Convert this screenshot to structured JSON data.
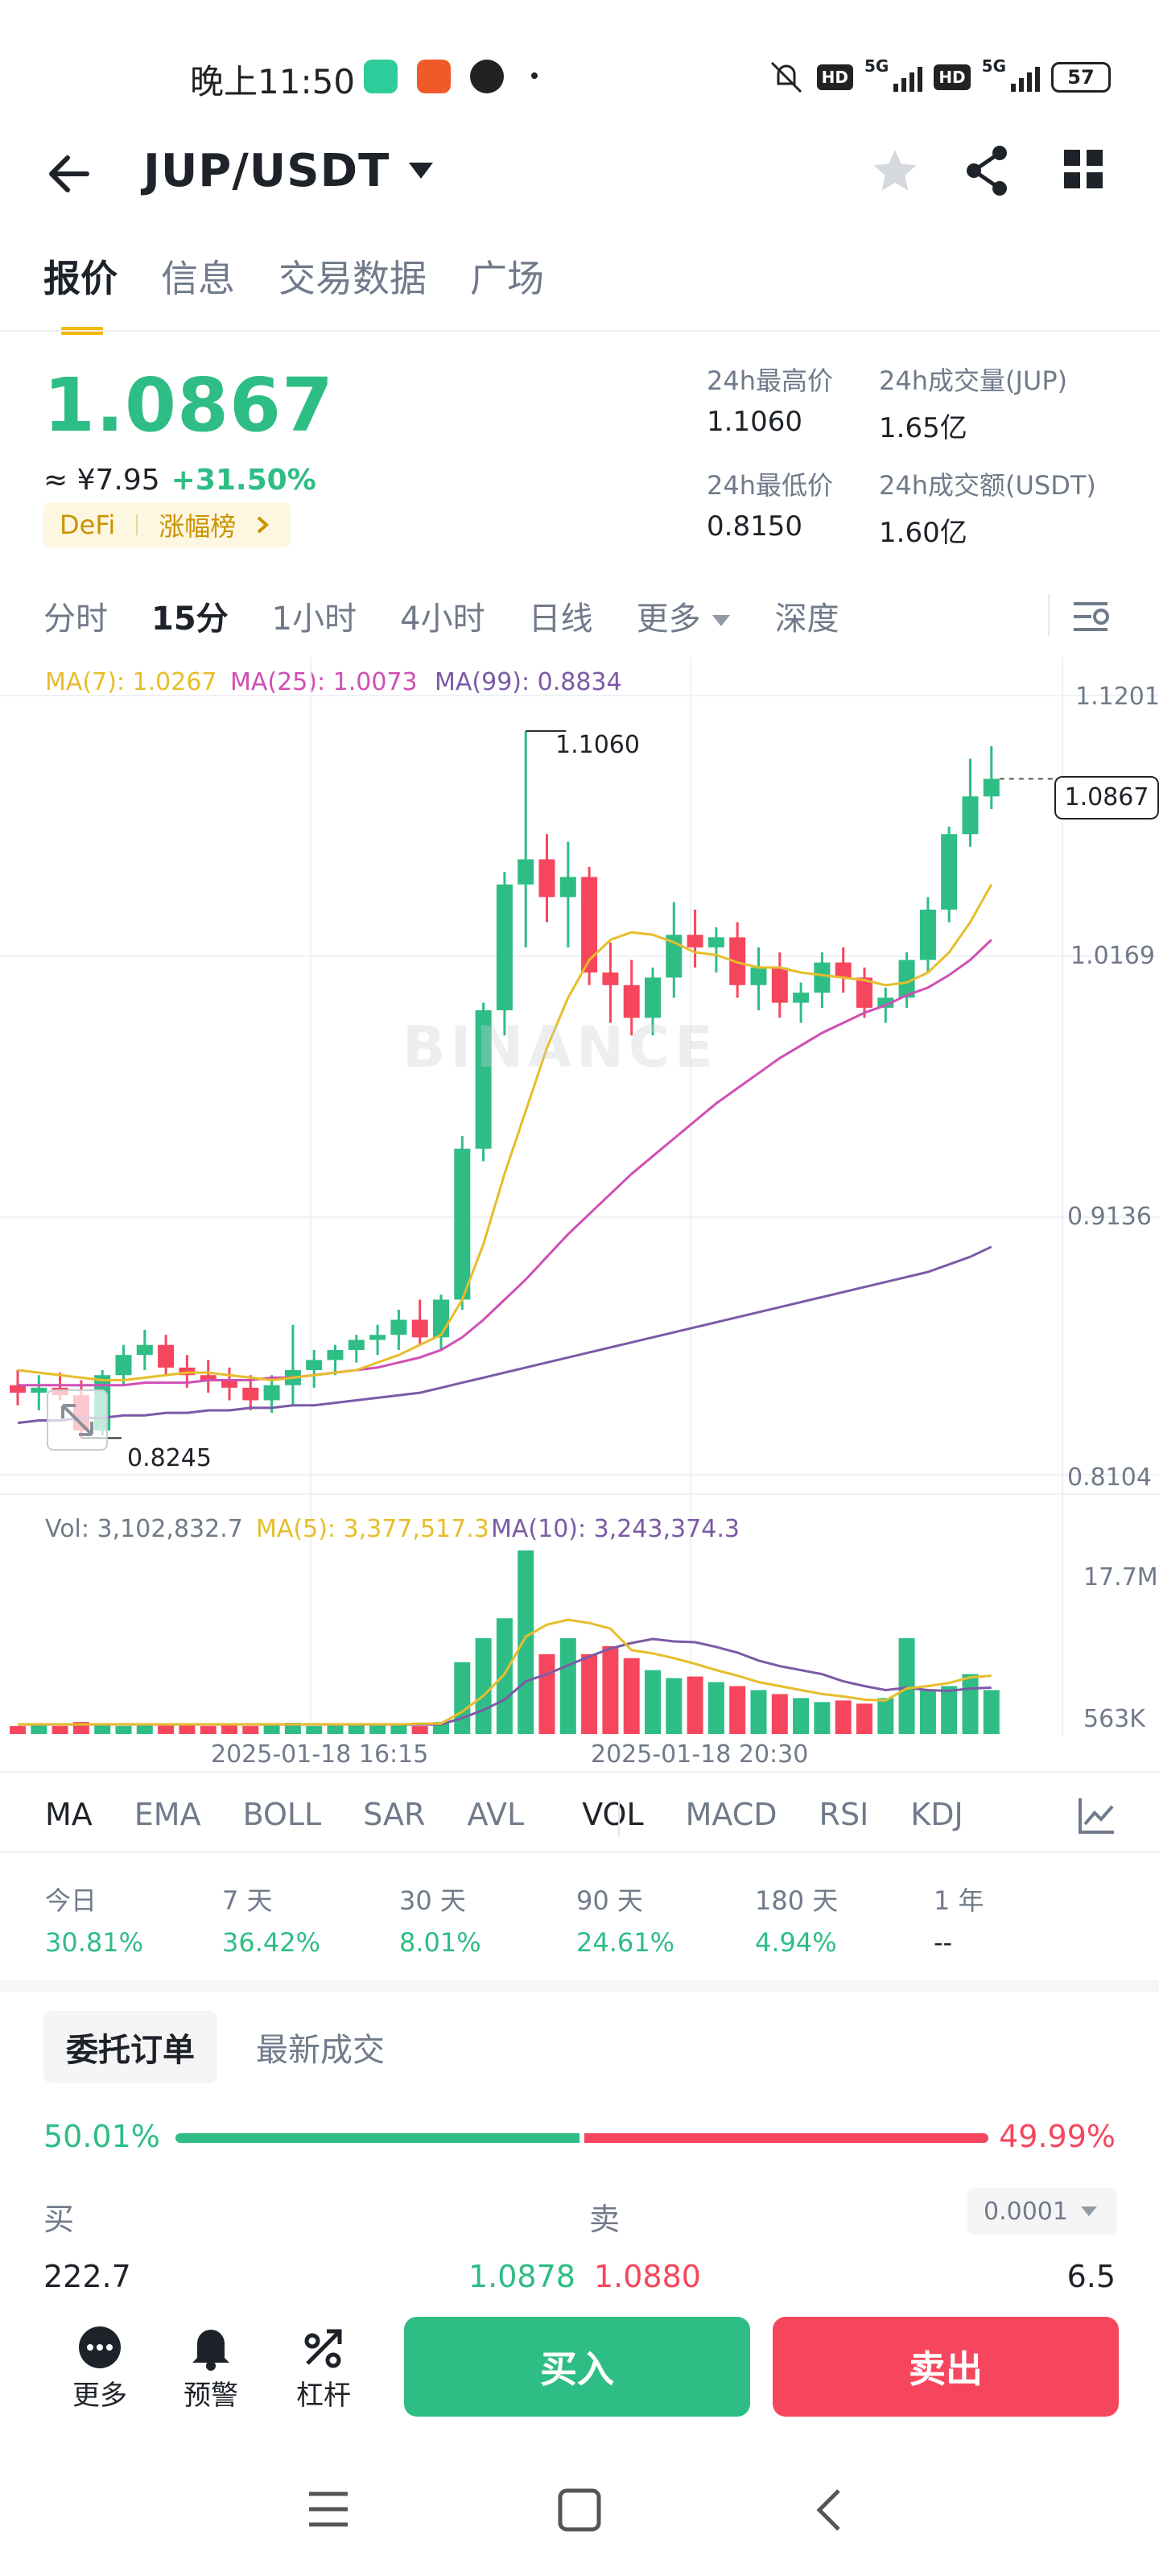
{
  "status_bar": {
    "time": "晚上11:50",
    "network": "5G",
    "hd": "HD",
    "battery": "57"
  },
  "header": {
    "pair": "JUP/USDT"
  },
  "tabs": [
    "报价",
    "信息",
    "交易数据",
    "广场"
  ],
  "price": {
    "last": "1.0867",
    "cny": "≈ ¥7.95",
    "change": "+31.50%",
    "tag_sector": "DeFi",
    "tag_rank": "涨幅榜",
    "high_label": "24h最高价",
    "high": "1.1060",
    "low_label": "24h最低价",
    "low": "0.8150",
    "vol_label": "24h成交量(JUP)",
    "vol": "1.65亿",
    "turnover_label": "24h成交额(USDT)",
    "turnover": "1.60亿"
  },
  "intervals": [
    "分时",
    "15分",
    "1小时",
    "4小时",
    "日线",
    "更多",
    "深度"
  ],
  "chart": {
    "ma7": "MA(7): 1.0267",
    "ma25": "MA(25): 1.0073",
    "ma99": "MA(99): 0.8834",
    "y_ticks": [
      "1.1201",
      "1.0169",
      "0.9136",
      "0.8104"
    ],
    "current_price": "1.0867",
    "high_mark": "1.1060",
    "low_mark": "0.8245",
    "vol_legend": "Vol: 3,102,832.7",
    "vol_ma5": "MA(5): 3,377,517.3",
    "vol_ma10": "MA(10): 3,243,374.3",
    "vol_ticks": [
      "17.7M",
      "563K"
    ],
    "x_ticks": [
      "2025-01-18 16:15",
      "2025-01-18 20:30"
    ],
    "watermark": "BINANCE",
    "colors": {
      "up": "#2ebd85",
      "down": "#f6465d",
      "ma7": "#e7bd2a",
      "ma25": "#d04fb4",
      "ma99": "#7b5aa6"
    }
  },
  "chart_data": {
    "type": "candlestick",
    "title": "JUP/USDT 15分",
    "ylim": [
      0.8104,
      1.1201
    ],
    "candles": [
      {
        "o": 0.846,
        "h": 0.852,
        "l": 0.838,
        "c": 0.843
      },
      {
        "o": 0.843,
        "h": 0.85,
        "l": 0.836,
        "c": 0.845
      },
      {
        "o": 0.845,
        "h": 0.851,
        "l": 0.84,
        "c": 0.842
      },
      {
        "o": 0.842,
        "h": 0.848,
        "l": 0.825,
        "c": 0.828
      },
      {
        "o": 0.828,
        "h": 0.852,
        "l": 0.826,
        "c": 0.85
      },
      {
        "o": 0.85,
        "h": 0.862,
        "l": 0.846,
        "c": 0.858
      },
      {
        "o": 0.858,
        "h": 0.868,
        "l": 0.852,
        "c": 0.862
      },
      {
        "o": 0.862,
        "h": 0.866,
        "l": 0.85,
        "c": 0.853
      },
      {
        "o": 0.853,
        "h": 0.858,
        "l": 0.845,
        "c": 0.85
      },
      {
        "o": 0.85,
        "h": 0.856,
        "l": 0.843,
        "c": 0.848
      },
      {
        "o": 0.848,
        "h": 0.853,
        "l": 0.84,
        "c": 0.845
      },
      {
        "o": 0.845,
        "h": 0.85,
        "l": 0.836,
        "c": 0.84
      },
      {
        "o": 0.84,
        "h": 0.85,
        "l": 0.835,
        "c": 0.846
      },
      {
        "o": 0.846,
        "h": 0.87,
        "l": 0.838,
        "c": 0.852
      },
      {
        "o": 0.852,
        "h": 0.86,
        "l": 0.845,
        "c": 0.856
      },
      {
        "o": 0.856,
        "h": 0.862,
        "l": 0.85,
        "c": 0.86
      },
      {
        "o": 0.86,
        "h": 0.866,
        "l": 0.855,
        "c": 0.864
      },
      {
        "o": 0.864,
        "h": 0.87,
        "l": 0.858,
        "c": 0.866
      },
      {
        "o": 0.866,
        "h": 0.876,
        "l": 0.86,
        "c": 0.872
      },
      {
        "o": 0.872,
        "h": 0.88,
        "l": 0.862,
        "c": 0.865
      },
      {
        "o": 0.865,
        "h": 0.882,
        "l": 0.86,
        "c": 0.88
      },
      {
        "o": 0.88,
        "h": 0.945,
        "l": 0.876,
        "c": 0.94
      },
      {
        "o": 0.94,
        "h": 0.998,
        "l": 0.935,
        "c": 0.995
      },
      {
        "o": 0.995,
        "h": 1.05,
        "l": 0.985,
        "c": 1.045
      },
      {
        "o": 1.045,
        "h": 1.106,
        "l": 1.02,
        "c": 1.055
      },
      {
        "o": 1.055,
        "h": 1.065,
        "l": 1.03,
        "c": 1.04
      },
      {
        "o": 1.04,
        "h": 1.062,
        "l": 1.02,
        "c": 1.048
      },
      {
        "o": 1.048,
        "h": 1.052,
        "l": 1.005,
        "c": 1.01
      },
      {
        "o": 1.01,
        "h": 1.022,
        "l": 0.99,
        "c": 1.005
      },
      {
        "o": 1.005,
        "h": 1.015,
        "l": 0.985,
        "c": 0.992
      },
      {
        "o": 0.992,
        "h": 1.012,
        "l": 0.985,
        "c": 1.008
      },
      {
        "o": 1.008,
        "h": 1.038,
        "l": 1.0,
        "c": 1.025
      },
      {
        "o": 1.025,
        "h": 1.035,
        "l": 1.012,
        "c": 1.02
      },
      {
        "o": 1.02,
        "h": 1.028,
        "l": 1.01,
        "c": 1.024
      },
      {
        "o": 1.024,
        "h": 1.03,
        "l": 1.0,
        "c": 1.005
      },
      {
        "o": 1.005,
        "h": 1.02,
        "l": 0.995,
        "c": 1.012
      },
      {
        "o": 1.012,
        "h": 1.018,
        "l": 0.992,
        "c": 0.998
      },
      {
        "o": 0.998,
        "h": 1.006,
        "l": 0.99,
        "c": 1.002
      },
      {
        "o": 1.002,
        "h": 1.018,
        "l": 0.996,
        "c": 1.014
      },
      {
        "o": 1.014,
        "h": 1.02,
        "l": 1.002,
        "c": 1.008
      },
      {
        "o": 1.008,
        "h": 1.012,
        "l": 0.992,
        "c": 0.996
      },
      {
        "o": 0.996,
        "h": 1.004,
        "l": 0.99,
        "c": 1.0
      },
      {
        "o": 1.0,
        "h": 1.018,
        "l": 0.996,
        "c": 1.015
      },
      {
        "o": 1.015,
        "h": 1.04,
        "l": 1.01,
        "c": 1.035
      },
      {
        "o": 1.035,
        "h": 1.068,
        "l": 1.03,
        "c": 1.065
      },
      {
        "o": 1.065,
        "h": 1.095,
        "l": 1.06,
        "c": 1.08
      },
      {
        "o": 1.08,
        "h": 1.1,
        "l": 1.075,
        "c": 1.087
      }
    ],
    "ma7": [
      0.852,
      0.851,
      0.85,
      0.849,
      0.848,
      0.848,
      0.849,
      0.85,
      0.851,
      0.851,
      0.85,
      0.849,
      0.848,
      0.849,
      0.85,
      0.851,
      0.852,
      0.855,
      0.858,
      0.862,
      0.866,
      0.88,
      0.902,
      0.93,
      0.955,
      0.98,
      1.0,
      1.015,
      1.023,
      1.026,
      1.025,
      1.022,
      1.018,
      1.017,
      1.014,
      1.012,
      1.012,
      1.01,
      1.009,
      1.008,
      1.007,
      1.005,
      1.006,
      1.01,
      1.018,
      1.03,
      1.045
    ],
    "ma25": [
      0.846,
      0.846,
      0.846,
      0.846,
      0.846,
      0.846,
      0.847,
      0.847,
      0.847,
      0.848,
      0.848,
      0.848,
      0.849,
      0.849,
      0.85,
      0.851,
      0.852,
      0.853,
      0.855,
      0.857,
      0.86,
      0.865,
      0.872,
      0.88,
      0.888,
      0.897,
      0.906,
      0.914,
      0.922,
      0.93,
      0.937,
      0.944,
      0.951,
      0.958,
      0.964,
      0.97,
      0.976,
      0.981,
      0.986,
      0.99,
      0.994,
      0.997,
      1.001,
      1.004,
      1.009,
      1.015,
      1.023
    ],
    "ma99": [
      0.831,
      0.832,
      0.832,
      0.833,
      0.833,
      0.834,
      0.834,
      0.835,
      0.835,
      0.836,
      0.836,
      0.837,
      0.837,
      0.838,
      0.838,
      0.839,
      0.84,
      0.841,
      0.842,
      0.843,
      0.845,
      0.847,
      0.849,
      0.851,
      0.853,
      0.855,
      0.857,
      0.859,
      0.861,
      0.863,
      0.865,
      0.867,
      0.869,
      0.871,
      0.873,
      0.875,
      0.877,
      0.879,
      0.881,
      0.883,
      0.885,
      0.887,
      0.889,
      0.891,
      0.894,
      0.897,
      0.901
    ],
    "volume": [
      0.1,
      0.12,
      0.1,
      0.15,
      0.12,
      0.1,
      0.11,
      0.13,
      0.12,
      0.1,
      0.11,
      0.1,
      0.12,
      0.14,
      0.1,
      0.12,
      0.11,
      0.13,
      0.12,
      0.1,
      0.15,
      0.9,
      1.2,
      1.45,
      2.3,
      1.0,
      1.2,
      1.0,
      1.1,
      0.95,
      0.8,
      0.7,
      0.72,
      0.65,
      0.6,
      0.55,
      0.5,
      0.45,
      0.4,
      0.42,
      0.38,
      0.45,
      1.2,
      0.55,
      0.6,
      0.75,
      0.55
    ],
    "vol_ma5": [
      0.12,
      0.12,
      0.12,
      0.12,
      0.12,
      0.12,
      0.12,
      0.12,
      0.12,
      0.12,
      0.12,
      0.12,
      0.12,
      0.12,
      0.12,
      0.12,
      0.12,
      0.12,
      0.12,
      0.13,
      0.13,
      0.28,
      0.48,
      0.75,
      1.22,
      1.37,
      1.43,
      1.39,
      1.32,
      1.05,
      1.01,
      0.95,
      0.88,
      0.8,
      0.73,
      0.65,
      0.6,
      0.55,
      0.5,
      0.47,
      0.43,
      0.42,
      0.57,
      0.6,
      0.64,
      0.71,
      0.73
    ],
    "vol_ma10": [
      0.12,
      0.12,
      0.12,
      0.12,
      0.12,
      0.12,
      0.12,
      0.12,
      0.12,
      0.12,
      0.12,
      0.12,
      0.12,
      0.12,
      0.12,
      0.12,
      0.12,
      0.12,
      0.12,
      0.12,
      0.12,
      0.2,
      0.3,
      0.43,
      0.66,
      0.75,
      0.86,
      0.97,
      1.07,
      1.14,
      1.19,
      1.16,
      1.15,
      1.09,
      1.02,
      0.92,
      0.85,
      0.8,
      0.75,
      0.66,
      0.6,
      0.55,
      0.58,
      0.55,
      0.54,
      0.57,
      0.58
    ]
  },
  "indicators": [
    "MA",
    "EMA",
    "BOLL",
    "SAR",
    "AVL",
    "VOL",
    "MACD",
    "RSI",
    "KDJ"
  ],
  "performance": [
    {
      "label": "今日",
      "value": "30.81%"
    },
    {
      "label": "7 天",
      "value": "36.42%"
    },
    {
      "label": "30 天",
      "value": "8.01%"
    },
    {
      "label": "90 天",
      "value": "24.61%"
    },
    {
      "label": "180 天",
      "value": "4.94%"
    },
    {
      "label": "1 年",
      "value": "--"
    }
  ],
  "orderbook": {
    "tab_orders": "委托订单",
    "tab_trades": "最新成交",
    "buy_pct": "50.01%",
    "sell_pct": "49.99%",
    "buy_ratio": 0.5001,
    "buy_label": "买",
    "sell_label": "卖",
    "precision": "0.0001",
    "bid_qty": "222.7",
    "bid_price": "1.0878",
    "ask_price": "1.0880",
    "ask_qty": "6.5"
  },
  "bottom": {
    "more": "更多",
    "alert": "预警",
    "leverage": "杠杆",
    "buy": "买入",
    "sell": "卖出"
  }
}
